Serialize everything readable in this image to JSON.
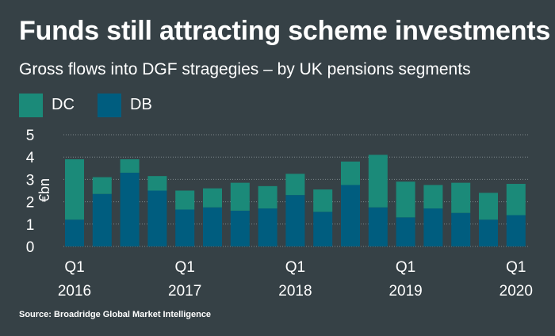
{
  "title": "Funds still attracting scheme investments",
  "subtitle": "Gross flows into DGF stragegies – by UK pensions segments",
  "source": "Source: Broadridge Global Market Intelligence",
  "colors": {
    "background": "#364146",
    "DC": "#1b8a79",
    "DB": "#005d7f",
    "grid": "#7d878b"
  },
  "legend": [
    {
      "name": "DC",
      "color": "#1b8a79"
    },
    {
      "name": "DB",
      "color": "#005d7f"
    }
  ],
  "chart_data": {
    "type": "bar",
    "stacked": true,
    "title": "Funds still attracting scheme investments",
    "subtitle": "Gross flows into DGF stragegies – by UK pensions segments",
    "ylabel": "€bn",
    "ylim": [
      0,
      5
    ],
    "yticks": [
      0,
      1,
      2,
      3,
      4,
      5
    ],
    "grid": true,
    "legend_position": "top-left",
    "categories": [
      "Q1 2016",
      "Q2 2016",
      "Q3 2016",
      "Q4 2016",
      "Q1 2017",
      "Q2 2017",
      "Q3 2017",
      "Q4 2017",
      "Q1 2018",
      "Q2 2018",
      "Q3 2018",
      "Q4 2018",
      "Q1 2019",
      "Q2 2019",
      "Q3 2019",
      "Q4 2019",
      "Q1 2020"
    ],
    "x_tick_labels": [
      {
        "index": 0,
        "line1": "Q1",
        "line2": "2016"
      },
      {
        "index": 4,
        "line1": "Q1",
        "line2": "2017"
      },
      {
        "index": 8,
        "line1": "Q1",
        "line2": "2018"
      },
      {
        "index": 12,
        "line1": "Q1",
        "line2": "2019"
      },
      {
        "index": 16,
        "line1": "Q1",
        "line2": "2020"
      }
    ],
    "series": [
      {
        "name": "DB",
        "values": [
          1.2,
          2.35,
          3.3,
          2.5,
          1.65,
          1.75,
          1.6,
          1.7,
          2.3,
          1.55,
          2.75,
          1.75,
          1.3,
          1.7,
          1.5,
          1.2,
          1.4
        ]
      },
      {
        "name": "DC",
        "values": [
          2.7,
          0.75,
          0.6,
          0.65,
          0.85,
          0.85,
          1.25,
          1.0,
          0.95,
          1.0,
          1.05,
          2.35,
          1.6,
          1.05,
          1.35,
          1.2,
          1.4
        ]
      }
    ]
  }
}
